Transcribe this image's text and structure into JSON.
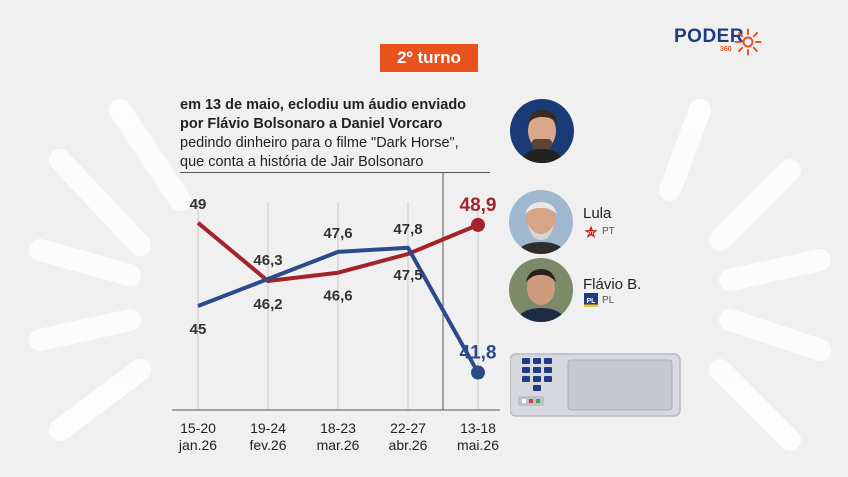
{
  "brand": {
    "name": "PODER",
    "sub": "360",
    "accent": "#e8521c",
    "navy": "#1f3b83"
  },
  "badge": "2º turno",
  "note": {
    "bold_lines": [
      "em 13 de maio, eclodiu um áudio enviado",
      "por Flávio Bolsonaro a Daniel Vorcaro"
    ],
    "lines": [
      "pedindo dinheiro para o filme \"Dark Horse\",",
      "que conta a história de Jair Bolsonaro"
    ]
  },
  "candidates": [
    {
      "name": "Lula",
      "party": "PT",
      "color": "#a3232a"
    },
    {
      "name": "Flávio B.",
      "party": "PL",
      "color": "#2b4a8a"
    }
  ],
  "chart_data": {
    "type": "line",
    "categories": [
      "15-20 jan.26",
      "19-24 fev.26",
      "18-23 mar.26",
      "22-27 abr.26",
      "13-18 mai.26"
    ],
    "x_tick_lines": [
      [
        "15-20",
        "jan.26"
      ],
      [
        "19-24",
        "fev.26"
      ],
      [
        "18-23",
        "mar.26"
      ],
      [
        "22-27",
        "abr.26"
      ],
      [
        "13-18",
        "mai.26"
      ]
    ],
    "series": [
      {
        "name": "Lula",
        "values": [
          49,
          46.2,
          46.6,
          47.5,
          48.9
        ],
        "labels": [
          "49",
          "46,2",
          "46,6",
          "47,5",
          "48,9"
        ],
        "color": "#a3232a"
      },
      {
        "name": "Flávio B.",
        "values": [
          45,
          46.3,
          47.6,
          47.8,
          41.8
        ],
        "labels": [
          "45",
          "46,3",
          "47,6",
          "47,8",
          "41,8"
        ],
        "color": "#2b4a8a"
      }
    ],
    "ylim": [
      40,
      50
    ],
    "grid": true,
    "legend": "right"
  }
}
